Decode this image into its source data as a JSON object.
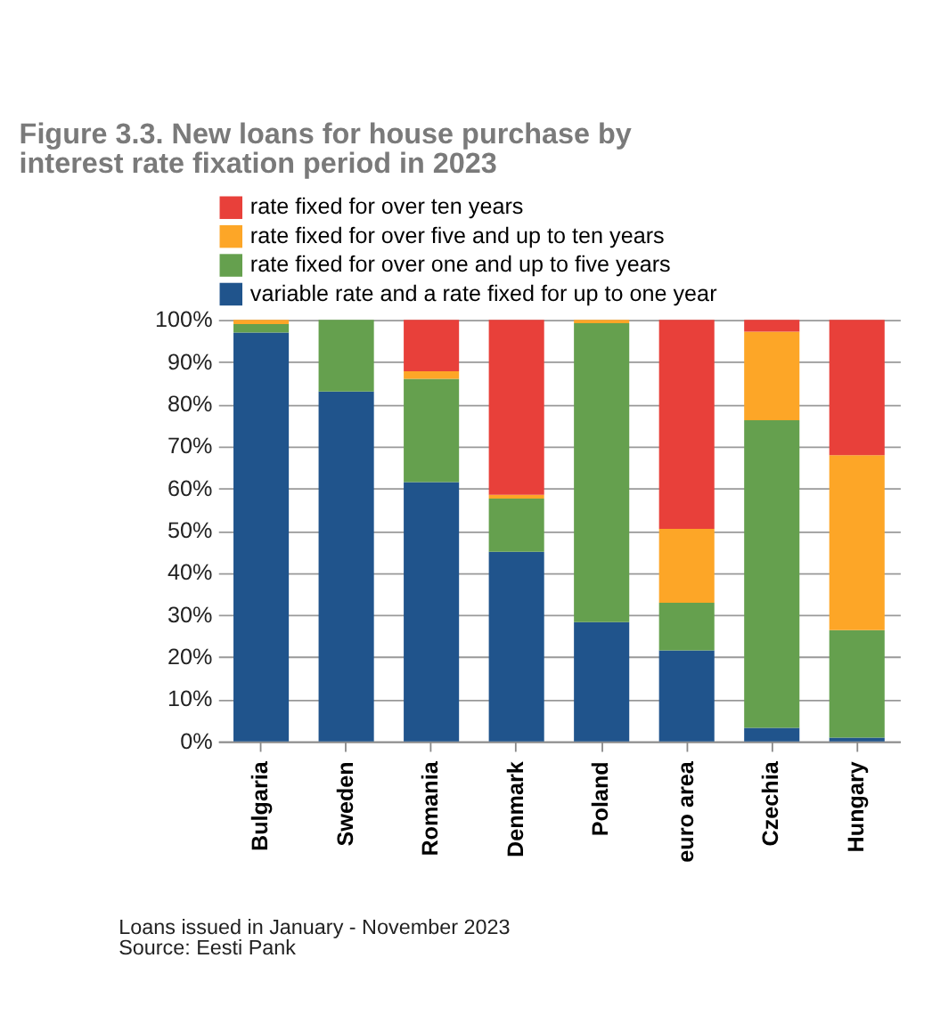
{
  "chart_data": {
    "type": "bar",
    "title": "Figure 3.3. New loans for house purchase by interest rate fixation period in 2023",
    "categories": [
      "Bulgaria",
      "Sweden",
      "Romania",
      "Denmark",
      "Poland",
      "euro area",
      "Czechia",
      "Hungary"
    ],
    "series": [
      {
        "name": "variable rate and a rate fixed for up to one year",
        "color": "#20548c",
        "values": [
          97,
          83,
          61.5,
          45,
          28.3,
          21.6,
          3.2,
          0.9
        ]
      },
      {
        "name": "rate fixed for over one and up to five years",
        "color": "#65a04e",
        "values": [
          2,
          17,
          24.5,
          12.6,
          70.9,
          11.3,
          73,
          25.5
        ]
      },
      {
        "name": "rate fixed for over five and up to ten years",
        "color": "#fda627",
        "values": [
          1,
          0,
          1.8,
          0.9,
          0.8,
          17.5,
          21,
          41.5
        ]
      },
      {
        "name": "rate fixed for over ten years",
        "color": "#e8403a",
        "values": [
          0,
          0,
          12.2,
          41.5,
          0,
          49.6,
          2.8,
          32.1
        ]
      }
    ],
    "stacked": true,
    "ylim": [
      0,
      100
    ],
    "yticks": [
      {
        "value": 0,
        "label": "0%"
      },
      {
        "value": 10,
        "label": "10%"
      },
      {
        "value": 20,
        "label": "20%"
      },
      {
        "value": 30,
        "label": "30%"
      },
      {
        "value": 40,
        "label": "40%"
      },
      {
        "value": 50,
        "label": "50%"
      },
      {
        "value": 60,
        "label": "60%"
      },
      {
        "value": 70,
        "label": "70%"
      },
      {
        "value": 80,
        "label": "80%"
      },
      {
        "value": 90,
        "label": "90%"
      },
      {
        "value": 100,
        "label": "100%"
      }
    ],
    "grid": "y",
    "legend": "top",
    "annotations": [
      "Loans issued in January - November 2023",
      "Source: Eesti Pank"
    ]
  }
}
